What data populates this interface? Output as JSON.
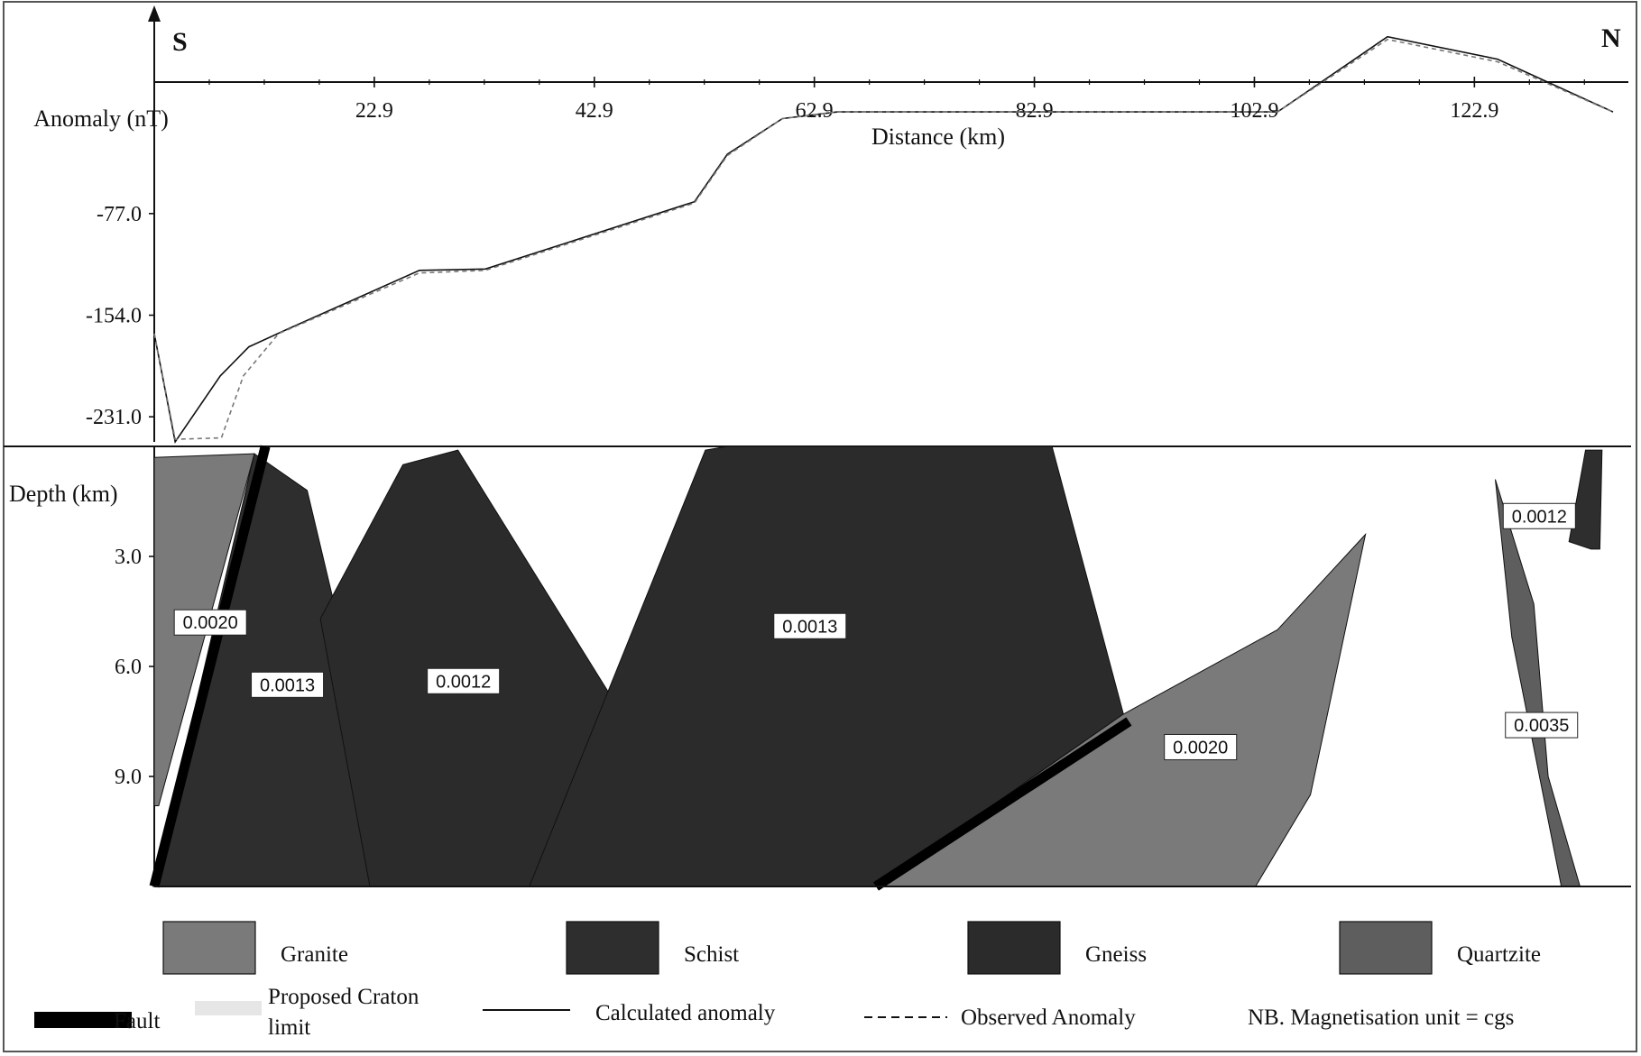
{
  "colors": {
    "granite": "#7a7a7a",
    "schist": "#2e2e2e",
    "gneiss": "#2b2b2b",
    "quartzite": "#5e5e5e",
    "fault": "#000000",
    "craton_limit": "#e6e6e6",
    "line": "#111111"
  },
  "chart_data": {
    "type": "line",
    "profile_labels": {
      "south": "S",
      "north": "N"
    },
    "anomaly_panel": {
      "ylabel": "Anomaly (nT)",
      "xlabel": "Distance (km)",
      "x_ticks": [
        "22.9",
        "42.9",
        "62.9",
        "82.9",
        "102.9",
        "122.9"
      ],
      "y_ticks": [
        "-77.0",
        "-154.0",
        "-231.0"
      ],
      "xlim": [
        2.9,
        135.5
      ],
      "ylim": [
        -250,
        78
      ],
      "series": [
        {
          "name": "Calculated anomaly",
          "x": [
            2.9,
            4.8,
            8.9,
            11.5,
            14.9,
            27.0,
            33.0,
            52.0,
            55.0,
            60.0,
            65.0,
            105.0,
            115.0,
            125.0,
            135.5
          ],
          "y": [
            -168,
            -250,
            -200,
            -178,
            -165,
            -120,
            -119,
            -68,
            -32,
            -5,
            0,
            0,
            57,
            40,
            0
          ],
          "stroke": "solid"
        },
        {
          "name": "Observed Anomaly",
          "x": [
            2.9,
            4.8,
            9.0,
            11.0,
            14.2,
            27.0,
            33.0,
            52.0,
            55.0,
            60.0,
            65.0,
            105.0,
            115.0,
            125.0,
            135.5
          ],
          "y": [
            -168,
            -248,
            -247,
            -200,
            -168,
            -122,
            -120,
            -69,
            -33,
            -5,
            0,
            0,
            55,
            38,
            0
          ],
          "stroke": "dashed"
        }
      ]
    },
    "model_panel": {
      "ylabel": "Depth (km)",
      "y_ticks": [
        "3.0",
        "6.0",
        "9.0"
      ],
      "ylim": [
        0,
        12
      ],
      "bodies": [
        {
          "rock": "Granite",
          "magnetisation": "0.0020",
          "label_x": 8,
          "label_y": 4.8,
          "polygon": [
            [
              2.9,
              0.3
            ],
            [
              12.0,
              0.2
            ],
            [
              3.3,
              9.8
            ],
            [
              2.9,
              9.8
            ]
          ]
        },
        {
          "rock": "Schist",
          "magnetisation": "0.0013",
          "label_x": 15.0,
          "label_y": 6.5,
          "polygon": [
            [
              12.0,
              0.2
            ],
            [
              16.8,
              1.2
            ],
            [
              21.0,
              6.5
            ],
            [
              22.5,
              12
            ],
            [
              2.8,
              12
            ]
          ]
        },
        {
          "rock": "Gneiss",
          "magnetisation": "0.0012",
          "label_x": 31.0,
          "label_y": 6.4,
          "polygon": [
            [
              18.0,
              4.7
            ],
            [
              25.5,
              0.5
            ],
            [
              30.5,
              0.1
            ],
            [
              44.8,
              7.0
            ],
            [
              37.0,
              12
            ],
            [
              22.5,
              12
            ]
          ]
        },
        {
          "rock": "Gneiss",
          "magnetisation": "0.0013",
          "label_x": 62.5,
          "label_y": 4.9,
          "polygon": [
            [
              53.0,
              0.1
            ],
            [
              55.0,
              0.0
            ],
            [
              84.5,
              0.0
            ],
            [
              91.0,
              7.3
            ],
            [
              68.5,
              12
            ],
            [
              37.0,
              12
            ]
          ]
        },
        {
          "rock": "Granite",
          "magnetisation": "0.0020",
          "label_x": 98.0,
          "label_y": 8.2,
          "polygon": [
            [
              91.0,
              7.3
            ],
            [
              105.0,
              5.0
            ],
            [
              113.0,
              2.4
            ],
            [
              108.0,
              9.5
            ],
            [
              103.0,
              12
            ],
            [
              68.5,
              12
            ]
          ]
        },
        {
          "rock": "Quartzite",
          "magnetisation": "0.0035",
          "label_x": 129.0,
          "label_y": 7.6,
          "polygon": [
            [
              124.8,
              0.9
            ],
            [
              128.3,
              4.3
            ],
            [
              129.6,
              9.0
            ],
            [
              132.5,
              12
            ],
            [
              130.8,
              12
            ],
            [
              126.3,
              5.2
            ]
          ]
        },
        {
          "rock": "Schist",
          "magnetisation": "0.0012",
          "label_x": 128.8,
          "label_y": 1.9,
          "polygon": [
            [
              133.0,
              0.1
            ],
            [
              134.5,
              0.1
            ],
            [
              134.3,
              2.8
            ],
            [
              133.5,
              2.8
            ],
            [
              131.5,
              2.6
            ]
          ]
        }
      ],
      "faults": [
        {
          "from": [
            2.9,
            12
          ],
          "to": [
            13.0,
            0.0
          ]
        },
        {
          "from": [
            68.5,
            12
          ],
          "to": [
            91.5,
            7.5
          ]
        }
      ]
    },
    "legend": {
      "rocks": [
        {
          "name": "Granite",
          "color": "#7a7a7a"
        },
        {
          "name": "Schist",
          "color": "#2e2e2e"
        },
        {
          "name": "Gneiss",
          "color": "#2b2b2b"
        },
        {
          "name": "Quartzite",
          "color": "#5e5e5e"
        }
      ],
      "fault": "Fault",
      "craton_limit": "Proposed Craton limit",
      "calculated": "Calculated anomaly",
      "observed": "Observed Anomaly",
      "note": "NB. Magnetisation unit = cgs"
    }
  }
}
